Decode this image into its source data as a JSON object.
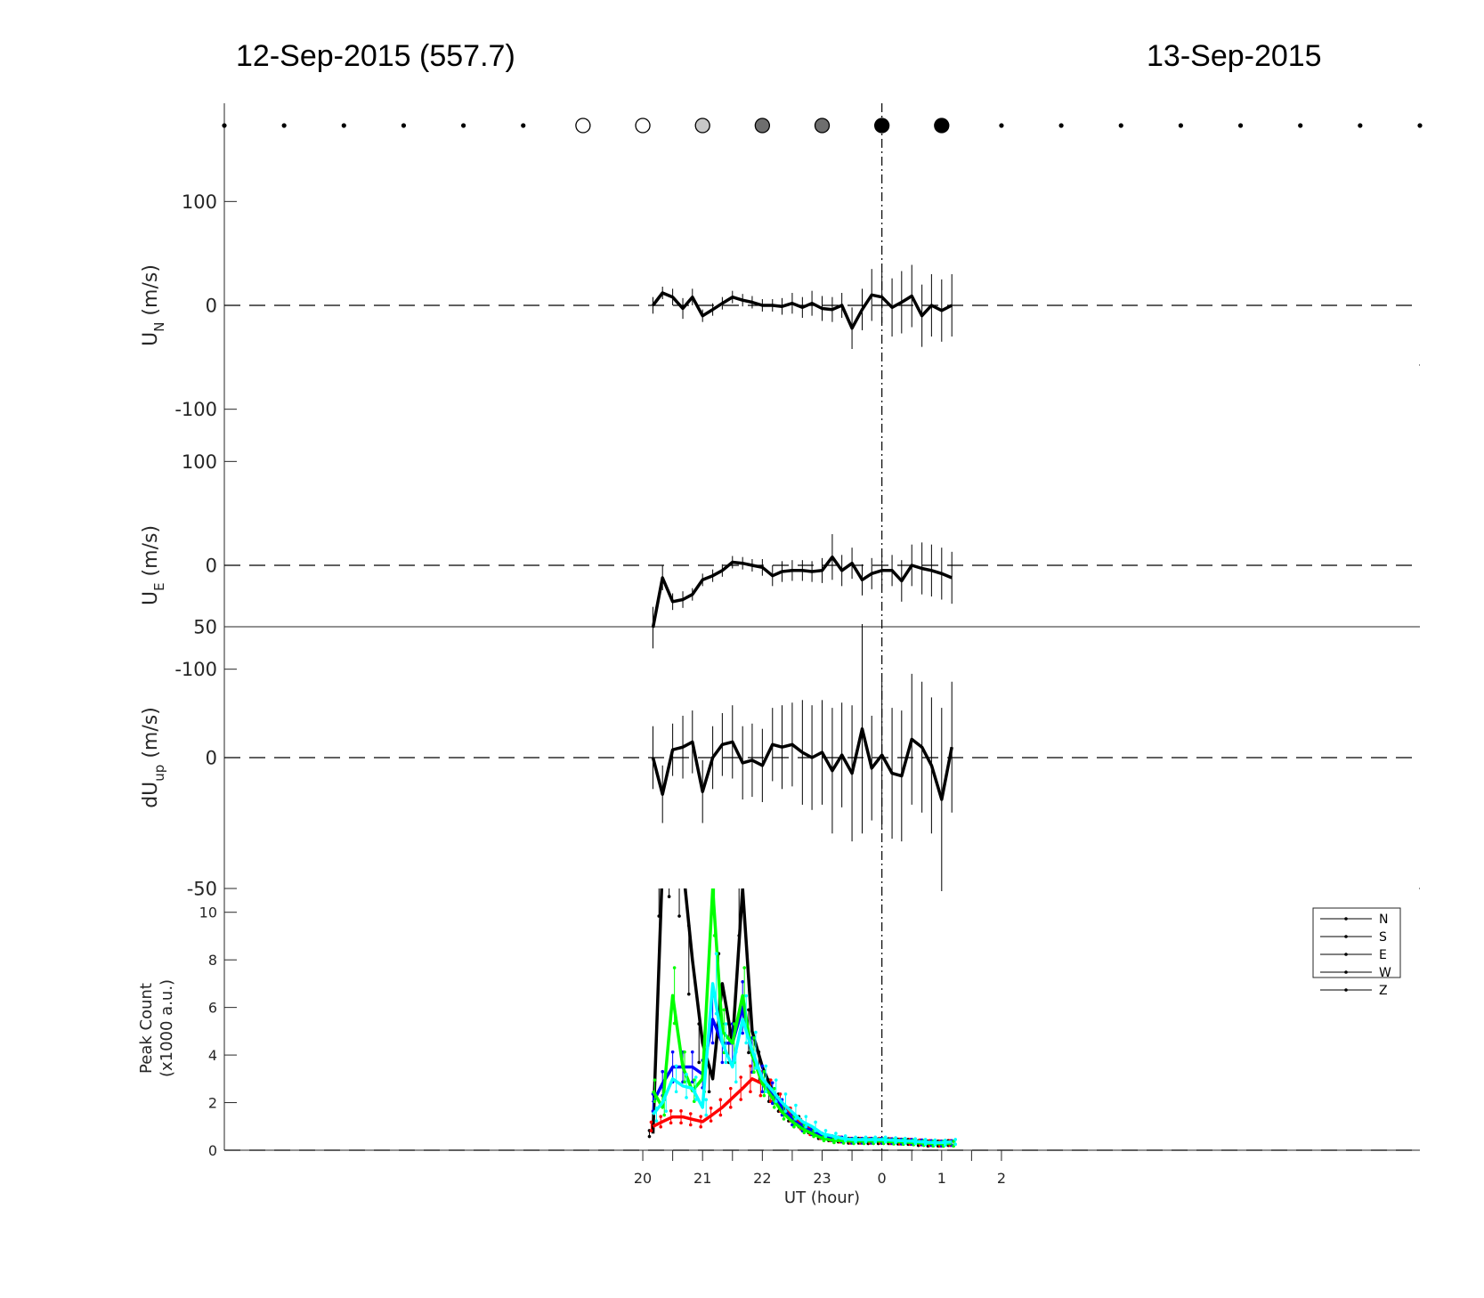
{
  "header": {
    "left_date": "12-Sep-2015 (557.7)",
    "right_date": "13-Sep-2015"
  },
  "chart_data": {
    "type": "line",
    "x_unit": "UT hour (24 = 0 UT on 13-Sep-2015)",
    "time_axis": {
      "xlim": [
        13,
        33
      ],
      "tick_labels": [
        "20",
        "21",
        "22",
        "23",
        "0",
        "1",
        "2"
      ],
      "tick_values": [
        20,
        20.5,
        21,
        21.5,
        22,
        22.5,
        23,
        23.5,
        24,
        24.5,
        25,
        25.5,
        26
      ],
      "xlabel": "UT (hour)"
    },
    "reference_time": 24,
    "sky_indicator": {
      "x": [
        13,
        14,
        15,
        16,
        17,
        18,
        19,
        20,
        21,
        22,
        23,
        24,
        25,
        26,
        27,
        28,
        29,
        30,
        31,
        32,
        33
      ],
      "fill": [
        "#000000",
        "#000000",
        "#000000",
        "#000000",
        "#000000",
        "#000000",
        "#ffffff",
        "#ffffff",
        "#c8c8c8",
        "#6e6e6e",
        "#6e6e6e",
        "#000000",
        "#000000",
        "#000000",
        "#000000",
        "#000000",
        "#000000",
        "#000000",
        "#000000",
        "#000000",
        "#000000"
      ],
      "size": [
        "dot",
        "dot",
        "dot",
        "dot",
        "dot",
        "dot",
        "circle",
        "circle",
        "circle",
        "circle",
        "circle",
        "circle",
        "circle",
        "dot",
        "dot",
        "dot",
        "dot",
        "dot",
        "dot",
        "dot",
        "dot"
      ]
    },
    "panels": [
      {
        "id": "un",
        "ylabel": "U",
        "ylabel_sub": "N",
        "ylabel_unit": " (m/s)",
        "ylim": [
          -150,
          150
        ],
        "yticks": [
          100,
          0,
          -100
        ],
        "ytick_labels": [
          "100",
          "0",
          "-100"
        ],
        "x": [
          20.17,
          20.33,
          20.5,
          20.67,
          20.83,
          21,
          21.17,
          21.33,
          21.5,
          21.67,
          21.83,
          22,
          22.17,
          22.33,
          22.5,
          22.67,
          22.83,
          23,
          23.17,
          23.33,
          23.5,
          23.67,
          23.83,
          24,
          24.17,
          24.33,
          24.5,
          24.67,
          24.83,
          25,
          25.17
        ],
        "y": [
          0,
          12,
          8,
          -3,
          8,
          -10,
          -4,
          2,
          8,
          5,
          3,
          0,
          0,
          -1,
          2,
          -2,
          2,
          -3,
          -4,
          0,
          -22,
          -4,
          10,
          8,
          -2,
          3,
          9,
          -10,
          0,
          -5,
          0
        ],
        "err": [
          8,
          6,
          8,
          10,
          8,
          6,
          6,
          6,
          6,
          6,
          6,
          6,
          6,
          8,
          10,
          10,
          12,
          12,
          12,
          12,
          20,
          20,
          25,
          25,
          28,
          30,
          30,
          30,
          30,
          30,
          30
        ]
      },
      {
        "id": "ue",
        "ylabel": "U",
        "ylabel_sub": "E",
        "ylabel_unit": " (m/s)",
        "ylim": [
          -150,
          150
        ],
        "yticks": [
          100,
          0,
          -100
        ],
        "ytick_labels": [
          "100",
          "0",
          "-100"
        ],
        "x": [
          20.17,
          20.33,
          20.5,
          20.67,
          20.83,
          21,
          21.17,
          21.33,
          21.5,
          21.67,
          21.83,
          22,
          22.17,
          22.33,
          22.5,
          22.67,
          22.83,
          23,
          23.17,
          23.33,
          23.5,
          23.67,
          23.83,
          24,
          24.17,
          24.33,
          24.5,
          24.67,
          24.83,
          25,
          25.17
        ],
        "y": [
          -60,
          -12,
          -35,
          -33,
          -28,
          -14,
          -10,
          -5,
          3,
          2,
          0,
          -2,
          -10,
          -6,
          -5,
          -5,
          -6,
          -5,
          8,
          -5,
          2,
          -14,
          -8,
          -5,
          -5,
          -15,
          0,
          -3,
          -5,
          -8,
          -12
        ],
        "err": [
          20,
          12,
          8,
          8,
          6,
          6,
          6,
          6,
          6,
          6,
          6,
          8,
          10,
          10,
          10,
          10,
          10,
          12,
          22,
          15,
          15,
          15,
          15,
          15,
          15,
          20,
          20,
          25,
          25,
          25,
          25
        ]
      },
      {
        "id": "dup",
        "ylabel": "dU",
        "ylabel_sub": "up",
        "ylabel_unit": " (m/s)",
        "ylim": [
          -50,
          50
        ],
        "yticks": [
          50,
          0,
          -50
        ],
        "ytick_labels": [
          "50",
          "0",
          "-50"
        ],
        "x": [
          20.17,
          20.33,
          20.5,
          20.67,
          20.83,
          21,
          21.17,
          21.33,
          21.5,
          21.67,
          21.83,
          22,
          22.17,
          22.33,
          22.5,
          22.67,
          22.83,
          23,
          23.17,
          23.33,
          23.5,
          23.67,
          23.83,
          24,
          24.17,
          24.33,
          24.5,
          24.67,
          24.83,
          25,
          25.17
        ],
        "y": [
          0,
          -14,
          3,
          4,
          6,
          -13,
          0,
          5,
          6,
          -2,
          -1,
          -3,
          5,
          4,
          5,
          2,
          0,
          2,
          -5,
          1,
          -6,
          11,
          -4,
          1,
          -6,
          -7,
          7,
          4,
          -3,
          -16,
          4
        ],
        "err": [
          12,
          11,
          10,
          12,
          12,
          12,
          12,
          12,
          14,
          14,
          14,
          14,
          14,
          16,
          16,
          20,
          20,
          20,
          24,
          20,
          26,
          40,
          20,
          28,
          25,
          25,
          25,
          25,
          26,
          35,
          25
        ]
      },
      {
        "id": "peak",
        "ylabel": "Peak Count",
        "ylabel2": "(x1000 a.u.)",
        "ylim": [
          0,
          11
        ],
        "yticks": [
          10,
          8,
          6,
          4,
          2,
          0
        ],
        "ytick_labels": [
          "10",
          "8",
          "6",
          "4",
          "2",
          "0"
        ],
        "series": [
          {
            "name": "N",
            "color": "#000000",
            "x": [
              20.17,
              20.33,
              20.5,
              20.67,
              20.83,
              21,
              21.17,
              21.33,
              21.5,
              21.67,
              21.83,
              22,
              22.17,
              22.33,
              22.5,
              22.67,
              22.83,
              23,
              23.17,
              23.33,
              23.5,
              23.67,
              23.83,
              24,
              24.17,
              24.33,
              24.5,
              24.67,
              24.83,
              25,
              25.17
            ],
            "y": [
              0.7,
              12,
              13,
              12,
              8,
              4.5,
              3,
              7,
              4.5,
              11,
              5,
              3.5,
              2.5,
              2,
              1.5,
              1.2,
              0.9,
              0.6,
              0.5,
              0.45,
              0.4,
              0.4,
              0.38,
              0.38,
              0.38,
              0.36,
              0.35,
              0.3,
              0.28,
              0.28,
              0.3
            ]
          },
          {
            "name": "S",
            "color": "#ff0000",
            "x": [
              20.17,
              20.33,
              20.5,
              20.67,
              20.83,
              21,
              21.17,
              21.33,
              21.5,
              21.67,
              21.83,
              22,
              22.17,
              22.33,
              22.5,
              22.67,
              22.83,
              23,
              23.17,
              23.33,
              23.5,
              23.67,
              23.83,
              24,
              24.17,
              24.33,
              24.5,
              24.67,
              24.83,
              25,
              25.17
            ],
            "y": [
              1,
              1.2,
              1.4,
              1.4,
              1.3,
              1.2,
              1.5,
              1.8,
              2.2,
              2.6,
              3,
              2.8,
              2.5,
              2,
              1.5,
              1.1,
              0.8,
              0.6,
              0.5,
              0.45,
              0.4,
              0.4,
              0.4,
              0.4,
              0.38,
              0.36,
              0.35,
              0.33,
              0.3,
              0.28,
              0.3
            ]
          },
          {
            "name": "E",
            "color": "#0000ff",
            "x": [
              20.17,
              20.33,
              20.5,
              20.67,
              20.83,
              21,
              21.17,
              21.33,
              21.5,
              21.67,
              21.83,
              22,
              22.17,
              22.33,
              22.5,
              22.67,
              22.83,
              23,
              23.17,
              23.33,
              23.5,
              23.67,
              23.83,
              24,
              24.17,
              24.33,
              24.5,
              24.67,
              24.83,
              25,
              25.17
            ],
            "y": [
              2,
              2.8,
              3.5,
              3.5,
              3.5,
              3.2,
              5.5,
              4.5,
              4.5,
              6,
              4,
              3,
              2.4,
              1.8,
              1.3,
              1,
              0.8,
              0.6,
              0.5,
              0.45,
              0.4,
              0.4,
              0.4,
              0.4,
              0.38,
              0.36,
              0.35,
              0.33,
              0.3,
              0.28,
              0.3
            ]
          },
          {
            "name": "W",
            "color": "#00ff00",
            "x": [
              20.17,
              20.33,
              20.5,
              20.67,
              20.83,
              21,
              21.17,
              21.33,
              21.5,
              21.67,
              21.83,
              22,
              22.17,
              22.33,
              22.5,
              22.67,
              22.83,
              23,
              23.17,
              23.33,
              23.5,
              23.67,
              23.83,
              24,
              24.17,
              24.33,
              24.5,
              24.67,
              24.83,
              25,
              25.17
            ],
            "y": [
              2.5,
              1.8,
              6.5,
              3.5,
              2.5,
              3,
              11,
              5,
              4.5,
              6.5,
              4,
              2.8,
              2.2,
              1.6,
              1.2,
              0.9,
              0.7,
              0.5,
              0.42,
              0.4,
              0.38,
              0.38,
              0.38,
              0.38,
              0.36,
              0.35,
              0.33,
              0.3,
              0.28,
              0.27,
              0.28
            ]
          },
          {
            "name": "Z",
            "color": "#00ffff",
            "x": [
              20.17,
              20.33,
              20.5,
              20.67,
              20.83,
              21,
              21.17,
              21.33,
              21.5,
              21.67,
              21.83,
              22,
              22.17,
              22.33,
              22.5,
              22.67,
              22.83,
              23,
              23.17,
              23.33,
              23.5,
              23.67,
              23.83,
              24,
              24.17,
              24.33,
              24.5,
              24.67,
              24.83,
              25,
              25.17
            ],
            "y": [
              1.5,
              2,
              3,
              2.7,
              2.6,
              1.8,
              7,
              4.5,
              3.5,
              5.5,
              4.2,
              3,
              2.5,
              2,
              1.6,
              1.2,
              1,
              0.7,
              0.6,
              0.5,
              0.45,
              0.45,
              0.45,
              0.45,
              0.42,
              0.4,
              0.38,
              0.35,
              0.33,
              0.32,
              0.35
            ]
          }
        ],
        "legend": {
          "placement": "top-right",
          "entries": [
            "N",
            "S",
            "E",
            "W",
            "Z"
          ]
        }
      }
    ]
  }
}
